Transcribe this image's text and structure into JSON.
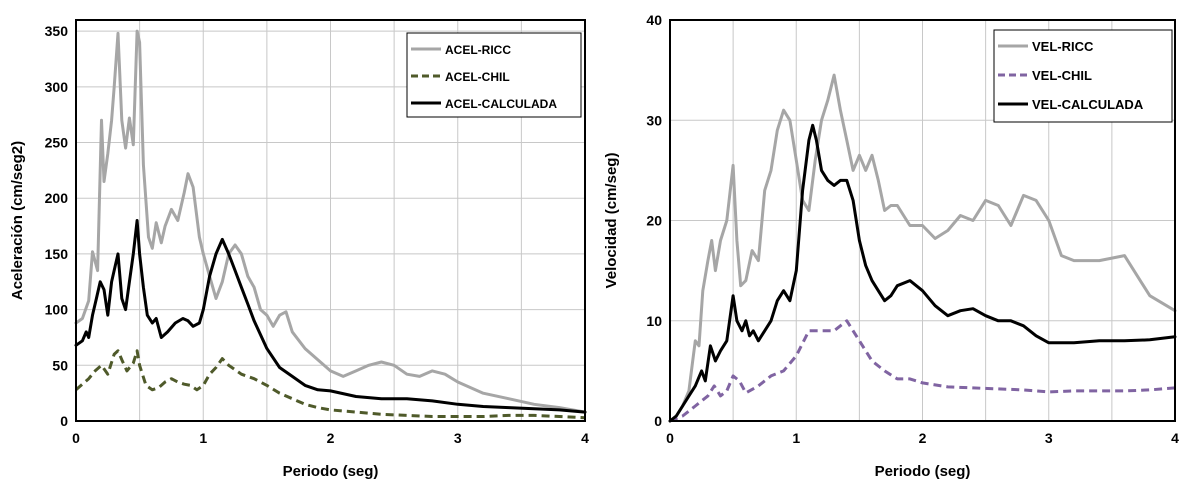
{
  "chart_data": [
    {
      "type": "line",
      "xlabel": "Periodo (seg)",
      "ylabel": "Aceleración (cm/seg2)",
      "xlim": [
        0,
        4
      ],
      "ylim": [
        0,
        360
      ],
      "xticks": [
        "0",
        "1",
        "2",
        "3",
        "4"
      ],
      "yticks": [
        "0",
        "50",
        "100",
        "150",
        "200",
        "250",
        "300",
        "350"
      ],
      "grid": true,
      "legend_position": "top-right",
      "series": [
        {
          "name": "ACEL-RICC",
          "color": "#a6a6a6",
          "dash": "solid",
          "x": [
            0,
            0.05,
            0.1,
            0.13,
            0.17,
            0.2,
            0.22,
            0.25,
            0.28,
            0.3,
            0.33,
            0.36,
            0.39,
            0.42,
            0.45,
            0.48,
            0.5,
            0.53,
            0.57,
            0.6,
            0.63,
            0.67,
            0.7,
            0.75,
            0.8,
            0.85,
            0.88,
            0.92,
            0.97,
            1.0,
            1.05,
            1.1,
            1.15,
            1.2,
            1.25,
            1.3,
            1.35,
            1.4,
            1.45,
            1.5,
            1.55,
            1.6,
            1.65,
            1.7,
            1.8,
            1.9,
            2.0,
            2.1,
            2.2,
            2.3,
            2.4,
            2.5,
            2.6,
            2.7,
            2.8,
            2.9,
            3.0,
            3.2,
            3.4,
            3.6,
            3.8,
            4.0
          ],
          "y": [
            88,
            92,
            108,
            152,
            135,
            270,
            215,
            240,
            270,
            300,
            348,
            270,
            245,
            272,
            248,
            350,
            340,
            230,
            165,
            155,
            178,
            160,
            175,
            190,
            180,
            205,
            222,
            210,
            165,
            150,
            130,
            110,
            125,
            150,
            158,
            150,
            130,
            120,
            100,
            95,
            85,
            95,
            98,
            80,
            65,
            55,
            45,
            40,
            45,
            50,
            53,
            50,
            42,
            40,
            45,
            42,
            35,
            25,
            20,
            15,
            12,
            8
          ]
        },
        {
          "name": "ACEL-CHIL",
          "color": "#4f5a2a",
          "dash": "dashed",
          "x": [
            0,
            0.1,
            0.15,
            0.2,
            0.25,
            0.3,
            0.33,
            0.36,
            0.4,
            0.45,
            0.48,
            0.5,
            0.55,
            0.6,
            0.65,
            0.7,
            0.75,
            0.8,
            0.85,
            0.9,
            0.95,
            1.0,
            1.05,
            1.1,
            1.15,
            1.2,
            1.3,
            1.4,
            1.5,
            1.6,
            1.7,
            1.8,
            1.9,
            2.0,
            2.2,
            2.4,
            2.6,
            2.8,
            3.0,
            3.2,
            3.4,
            3.6,
            3.8,
            4.0
          ],
          "y": [
            28,
            38,
            45,
            50,
            42,
            60,
            63,
            55,
            45,
            52,
            63,
            50,
            32,
            28,
            30,
            35,
            38,
            35,
            33,
            32,
            28,
            32,
            42,
            48,
            56,
            50,
            42,
            38,
            32,
            25,
            20,
            15,
            12,
            10,
            8,
            6,
            5,
            4,
            4,
            4,
            5,
            5,
            4,
            3
          ]
        },
        {
          "name": "ACEL-CALCULADA",
          "color": "#000000",
          "dash": "solid",
          "x": [
            0,
            0.05,
            0.08,
            0.1,
            0.13,
            0.16,
            0.19,
            0.22,
            0.25,
            0.28,
            0.31,
            0.33,
            0.36,
            0.39,
            0.42,
            0.45,
            0.48,
            0.5,
            0.53,
            0.56,
            0.6,
            0.63,
            0.67,
            0.72,
            0.78,
            0.84,
            0.88,
            0.92,
            0.97,
            1.0,
            1.05,
            1.1,
            1.15,
            1.2,
            1.25,
            1.3,
            1.35,
            1.4,
            1.5,
            1.6,
            1.7,
            1.8,
            1.9,
            2.0,
            2.2,
            2.4,
            2.6,
            2.8,
            3.0,
            3.2,
            3.4,
            3.6,
            3.8,
            4.0
          ],
          "y": [
            68,
            72,
            80,
            75,
            95,
            110,
            125,
            118,
            95,
            125,
            140,
            150,
            110,
            100,
            125,
            150,
            180,
            150,
            120,
            95,
            88,
            92,
            75,
            80,
            88,
            92,
            90,
            85,
            88,
            100,
            130,
            150,
            163,
            150,
            135,
            120,
            105,
            90,
            65,
            48,
            40,
            32,
            28,
            27,
            22,
            20,
            20,
            18,
            15,
            13,
            12,
            11,
            10,
            8
          ]
        }
      ]
    },
    {
      "type": "line",
      "xlabel": "Periodo (seg)",
      "ylabel": "Velocidad (cm/seg)",
      "xlim": [
        0,
        4
      ],
      "ylim": [
        0,
        40
      ],
      "xticks": [
        "0",
        "1",
        "2",
        "3",
        "4"
      ],
      "yticks": [
        "0",
        "10",
        "20",
        "30",
        "40"
      ],
      "grid": true,
      "legend_position": "top-right",
      "series": [
        {
          "name": "VEL-RICC",
          "color": "#a6a6a6",
          "dash": "solid",
          "x": [
            0,
            0.05,
            0.1,
            0.15,
            0.18,
            0.2,
            0.23,
            0.26,
            0.3,
            0.33,
            0.36,
            0.4,
            0.45,
            0.5,
            0.53,
            0.56,
            0.6,
            0.65,
            0.7,
            0.75,
            0.8,
            0.85,
            0.9,
            0.95,
            1.0,
            1.05,
            1.1,
            1.15,
            1.2,
            1.25,
            1.3,
            1.35,
            1.4,
            1.45,
            1.5,
            1.55,
            1.6,
            1.65,
            1.7,
            1.75,
            1.8,
            1.9,
            2.0,
            2.1,
            2.2,
            2.3,
            2.4,
            2.5,
            2.6,
            2.7,
            2.8,
            2.9,
            3.0,
            3.1,
            3.2,
            3.4,
            3.6,
            3.8,
            4.0
          ],
          "y": [
            0,
            0.5,
            1.5,
            3,
            6,
            8,
            7.5,
            13,
            16,
            18,
            15,
            18,
            20,
            25.5,
            18,
            13.5,
            14,
            17,
            16,
            23,
            25,
            29,
            31,
            30,
            26,
            22,
            21,
            26,
            30,
            32,
            34.5,
            31,
            28,
            25,
            26.5,
            25,
            26.5,
            24,
            21,
            21.5,
            21.5,
            19.5,
            19.5,
            18.2,
            19,
            20.5,
            20,
            22,
            21.5,
            19.5,
            22.5,
            22,
            20,
            16.5,
            16,
            16,
            16.5,
            12.5,
            11
          ]
        },
        {
          "name": "VEL-CHIL",
          "color": "#8064a2",
          "dash": "dashed",
          "x": [
            0,
            0.1,
            0.2,
            0.3,
            0.35,
            0.4,
            0.45,
            0.5,
            0.55,
            0.6,
            0.7,
            0.8,
            0.9,
            1.0,
            1.1,
            1.2,
            1.3,
            1.35,
            1.4,
            1.45,
            1.5,
            1.6,
            1.7,
            1.8,
            1.9,
            2.0,
            2.2,
            2.4,
            2.6,
            2.8,
            3.0,
            3.2,
            3.4,
            3.6,
            3.8,
            4.0
          ],
          "y": [
            0,
            0.5,
            1.5,
            2.5,
            3.5,
            2.5,
            3,
            4.5,
            4,
            2.8,
            3.5,
            4.5,
            5,
            6.5,
            9,
            9,
            9,
            9.5,
            10,
            9,
            8,
            6,
            5,
            4.2,
            4.2,
            3.8,
            3.4,
            3.3,
            3.2,
            3.1,
            2.9,
            3,
            3,
            3,
            3.1,
            3.3
          ]
        },
        {
          "name": "VEL-CALCULADA",
          "color": "#000000",
          "dash": "solid",
          "x": [
            0,
            0.05,
            0.1,
            0.15,
            0.2,
            0.25,
            0.28,
            0.32,
            0.36,
            0.4,
            0.45,
            0.5,
            0.53,
            0.57,
            0.6,
            0.63,
            0.66,
            0.7,
            0.75,
            0.8,
            0.85,
            0.9,
            0.95,
            1.0,
            1.05,
            1.1,
            1.13,
            1.16,
            1.2,
            1.25,
            1.3,
            1.35,
            1.4,
            1.45,
            1.5,
            1.55,
            1.6,
            1.65,
            1.7,
            1.75,
            1.8,
            1.9,
            2.0,
            2.1,
            2.2,
            2.3,
            2.4,
            2.5,
            2.6,
            2.7,
            2.8,
            2.9,
            3.0,
            3.2,
            3.4,
            3.6,
            3.8,
            4.0
          ],
          "y": [
            0,
            0.5,
            1.5,
            2.5,
            3.5,
            5,
            4,
            7.5,
            6,
            7,
            8,
            12.5,
            10,
            9,
            10,
            8.5,
            9,
            8,
            9,
            10,
            12,
            13,
            12,
            15,
            23,
            28,
            29.5,
            28,
            25,
            24,
            23.5,
            24,
            24,
            22,
            18,
            15.5,
            14,
            13,
            12,
            12.5,
            13.5,
            14,
            13,
            11.5,
            10.5,
            11,
            11.2,
            10.5,
            10,
            10,
            9.5,
            8.5,
            7.8,
            7.8,
            8,
            8,
            8.1,
            8.4
          ]
        }
      ]
    }
  ]
}
